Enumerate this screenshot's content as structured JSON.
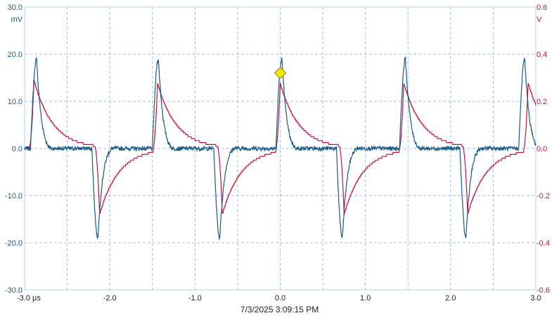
{
  "chart_data": {
    "type": "line",
    "title": "",
    "timestamp": "7/3/2025 3:09:15 PM",
    "x_axis": {
      "label": "",
      "unit": "µs",
      "range": [
        -3.0,
        3.0
      ],
      "ticks": [
        -3.0,
        -2.0,
        -1.0,
        0.0,
        1.0,
        2.0,
        3.0
      ],
      "tick_labels": [
        "-3.0 µs",
        "-2.0",
        "-1.0",
        "0.0",
        "1.0",
        "2.0",
        "3.0"
      ]
    },
    "y_axis_left": {
      "unit": "mV",
      "range": [
        -30.0,
        30.0
      ],
      "tick_labels": [
        "30.0",
        "20.0",
        "10.0",
        "0.0",
        "-10.0",
        "-20.0",
        "-30.0"
      ],
      "color": "#1a5a8a"
    },
    "y_axis_right": {
      "unit": "V",
      "range": [
        -0.6,
        0.6
      ],
      "tick_labels": [
        "0.6",
        "0.4",
        "0.2",
        "0.0",
        "-0.2",
        "-0.4",
        "-0.6"
      ],
      "color": "#c0143c"
    },
    "grid": true,
    "grid_divisions": {
      "x": 12,
      "y": 6
    },
    "series": [
      {
        "axis": "left",
        "color": "#1a5a8a",
        "waveform": "derivative pulse pairs (positive ~ +19 mV peak, negative ~ -19 mV peak)",
        "events": [
          {
            "t": -2.86,
            "peak": 19
          },
          {
            "t": -2.14,
            "peak": -19
          },
          {
            "t": -1.43,
            "peak": 19
          },
          {
            "t": -0.71,
            "peak": -19
          },
          {
            "t": 0.02,
            "peak": 19
          },
          {
            "t": 0.73,
            "peak": -19
          },
          {
            "t": 1.47,
            "peak": 19
          },
          {
            "t": 2.18,
            "peak": -19
          },
          {
            "t": 2.87,
            "peak": 19
          }
        ]
      },
      {
        "axis": "right",
        "color": "#c0143c",
        "waveform": "alternating exponential pulses (~ +0.29 V / -0.29 V peaks)",
        "events": [
          {
            "t": -2.89,
            "peak": 0.29
          },
          {
            "t": -2.12,
            "peak": -0.29
          },
          {
            "t": -1.44,
            "peak": 0.29
          },
          {
            "t": -0.68,
            "peak": -0.29
          },
          {
            "t": 0.0,
            "peak": 0.29
          },
          {
            "t": 0.75,
            "peak": -0.29
          },
          {
            "t": 1.45,
            "peak": 0.29
          },
          {
            "t": 2.2,
            "peak": -0.29
          },
          {
            "t": 2.91,
            "peak": 0.29
          }
        ]
      }
    ],
    "cursor_marker": {
      "shape": "diamond",
      "color": "#f5e600",
      "t": 0.0,
      "value_mV": 16
    }
  }
}
